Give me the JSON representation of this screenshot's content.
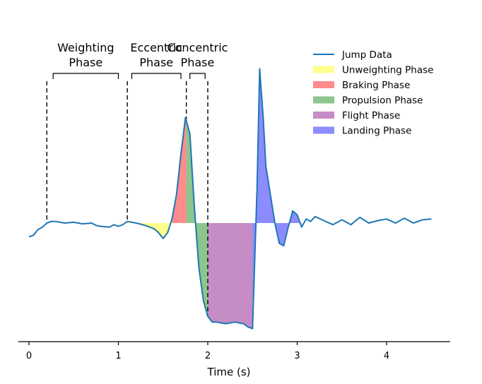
{
  "chart_data": {
    "type": "area",
    "xlabel": "Time (s)",
    "xlim": [
      -0.2,
      4.75
    ],
    "ylim": [
      -1.35,
      1.95
    ],
    "x_ticks": [
      0,
      1,
      2,
      3,
      4
    ],
    "x_tick_labels": [
      "0",
      "1",
      "2",
      "3",
      "4"
    ],
    "grid": false,
    "legend_position": "top-right",
    "baseline": 0,
    "series": [
      {
        "name": "Jump Data",
        "color": "#1f77b4",
        "x": [
          0.0,
          0.05,
          0.1,
          0.15,
          0.2,
          0.25,
          0.3,
          0.4,
          0.5,
          0.6,
          0.7,
          0.75,
          0.8,
          0.9,
          0.95,
          1.0,
          1.05,
          1.1,
          1.2,
          1.3,
          1.4,
          1.45,
          1.5,
          1.55,
          1.6,
          1.65,
          1.7,
          1.75,
          1.8,
          1.85,
          1.9,
          1.95,
          2.0,
          2.05,
          2.1,
          2.2,
          2.3,
          2.4,
          2.45,
          2.5,
          2.55,
          2.58,
          2.62,
          2.65,
          2.7,
          2.75,
          2.8,
          2.85,
          2.9,
          2.95,
          3.0,
          3.05,
          3.1,
          3.15,
          3.2,
          3.3,
          3.4,
          3.5,
          3.6,
          3.7,
          3.8,
          3.9,
          4.0,
          4.1,
          4.2,
          4.3,
          4.4,
          4.5
        ],
        "y": [
          -0.17,
          -0.15,
          -0.08,
          -0.05,
          0.0,
          0.02,
          0.02,
          0.0,
          0.01,
          -0.01,
          0.0,
          -0.03,
          -0.04,
          -0.05,
          -0.02,
          -0.04,
          -0.02,
          0.02,
          0.0,
          -0.03,
          -0.07,
          -0.12,
          -0.19,
          -0.12,
          0.05,
          0.35,
          0.85,
          1.3,
          1.1,
          0.2,
          -0.55,
          -0.95,
          -1.15,
          -1.22,
          -1.22,
          -1.24,
          -1.22,
          -1.24,
          -1.28,
          -1.3,
          0.4,
          1.9,
          1.3,
          0.7,
          0.35,
          0.0,
          -0.25,
          -0.28,
          -0.05,
          0.15,
          0.1,
          -0.05,
          0.05,
          0.02,
          0.08,
          0.03,
          -0.02,
          0.04,
          -0.02,
          0.07,
          0.0,
          0.03,
          0.05,
          0.0,
          0.06,
          0.0,
          0.04,
          0.05
        ]
      }
    ],
    "phases": [
      {
        "name": "Unweighting Phase",
        "color": "#ffff00",
        "x_start": 1.1,
        "x_end": 1.6
      },
      {
        "name": "Braking Phase",
        "color": "#ff0000",
        "x_start": 1.6,
        "x_end": 1.76
      },
      {
        "name": "Propulsion Phase",
        "color": "#008000",
        "x_start": 1.76,
        "x_end": 2.0
      },
      {
        "name": "Flight Phase",
        "color": "#800080",
        "x_start": 2.0,
        "x_end": 2.5
      },
      {
        "name": "Landing Phase",
        "color": "#0000ff",
        "x_start": 2.5,
        "x_end": 3.05
      }
    ],
    "dashed_markers": [
      0.2,
      1.1,
      1.76,
      2.0
    ],
    "annotations": [
      {
        "lines": [
          "Weighting",
          "Phase"
        ],
        "x_start": 0.27,
        "x_end": 1.0
      },
      {
        "lines": [
          "Eccentric",
          "Phase"
        ],
        "x_start": 1.15,
        "x_end": 1.7
      },
      {
        "lines": [
          "Concentric",
          "Phase"
        ],
        "x_start": 1.8,
        "x_end": 1.97
      }
    ]
  }
}
